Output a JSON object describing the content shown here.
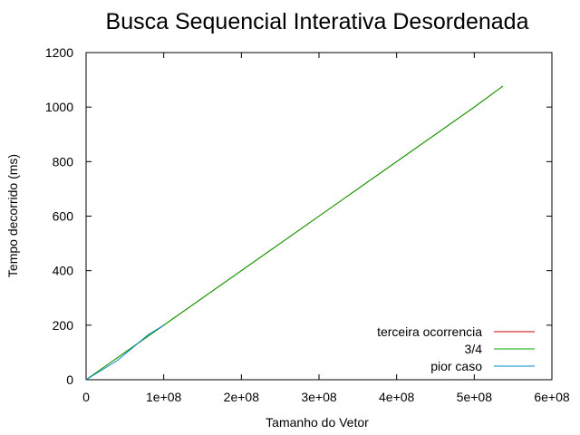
{
  "chart_data": {
    "type": "line",
    "title": "Busca Sequencial Interativa Desordenada",
    "xlabel": "Tamanho do Vetor",
    "ylabel": "Tempo decorrido (ms)",
    "xlim": [
      0,
      600000000
    ],
    "ylim": [
      0,
      1200
    ],
    "xticks": [
      0,
      100000000,
      200000000,
      300000000,
      400000000,
      500000000,
      600000000
    ],
    "xtick_labels": [
      "0",
      "1e+08",
      "2e+08",
      "3e+08",
      "4e+08",
      "5e+08",
      "6e+08"
    ],
    "yticks": [
      0,
      200,
      400,
      600,
      800,
      1000,
      1200
    ],
    "ytick_labels": [
      "0",
      "200",
      "400",
      "600",
      "800",
      "1000",
      "1200"
    ],
    "grid": false,
    "legend_position": "bottom-right",
    "series": [
      {
        "name": "terceira ocorrencia",
        "color": "#cc0000",
        "x": [
          0,
          100000000,
          200000000,
          300000000,
          400000000,
          500000000,
          537000000
        ],
        "y": [
          0,
          200,
          400,
          600,
          800,
          1000,
          1077
        ]
      },
      {
        "name": "3/4",
        "color": "#00aa00",
        "x": [
          0,
          100000000,
          200000000,
          300000000,
          400000000,
          500000000,
          537000000
        ],
        "y": [
          0,
          200,
          400,
          600,
          800,
          1000,
          1077
        ]
      },
      {
        "name": "pior caso",
        "color": "#0088cc",
        "x": [
          0,
          40000000,
          80000000,
          100000000
        ],
        "y": [
          0,
          70,
          165,
          200
        ]
      }
    ]
  }
}
